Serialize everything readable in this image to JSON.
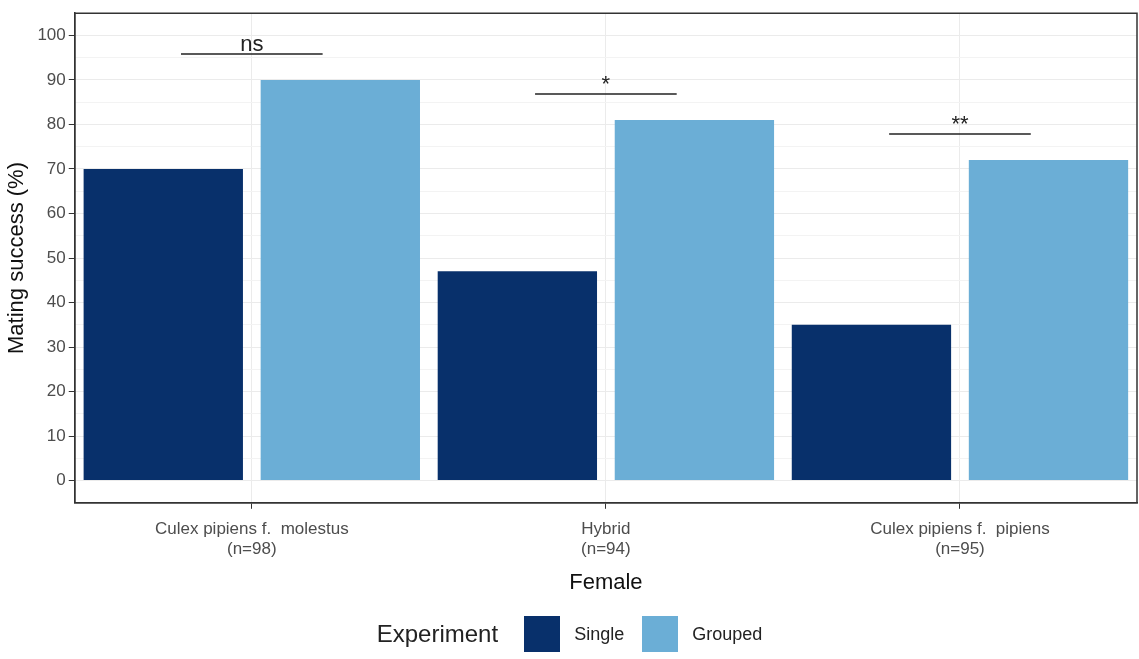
{
  "chart_data": {
    "type": "bar",
    "xlabel": "Female",
    "ylabel": "Mating success (%)",
    "legend_title": "Experiment",
    "legend": "bottom",
    "grid": true,
    "categories": [
      "Culex pipiens f.  molestus\n(n=98)",
      "Hybrid\n(n=94)",
      "Culex pipiens f.  pipiens\n(n=95)"
    ],
    "series": [
      {
        "name": "Single",
        "color": "#08306b",
        "values": [
          70,
          47,
          35
        ]
      },
      {
        "name": "Grouped",
        "color": "#6baed6",
        "values": [
          90,
          81,
          72
        ]
      }
    ],
    "ylim": [
      -5,
      105
    ],
    "yticks": [
      0,
      {
        "value": 5,
        "label": null
      },
      10,
      {
        "value": 15,
        "label": null
      },
      20,
      {
        "value": 25,
        "label": null
      },
      30,
      {
        "value": 35,
        "label": null
      },
      40,
      {
        "value": 45,
        "label": null
      },
      50,
      {
        "value": 55,
        "label": null
      },
      60,
      {
        "value": 65,
        "label": null
      },
      70,
      {
        "value": 75,
        "label": null
      },
      80,
      {
        "value": 85,
        "label": null
      },
      90,
      {
        "value": 95,
        "label": null
      },
      100
    ],
    "annotations": [
      "ns",
      "*",
      "**"
    ]
  }
}
